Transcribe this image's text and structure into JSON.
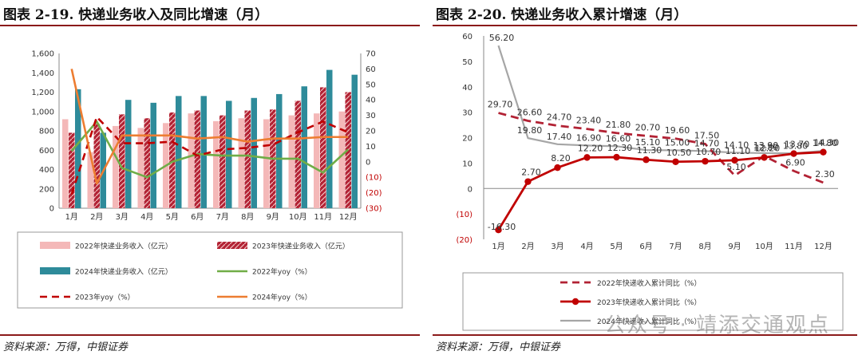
{
  "left": {
    "title": "图表 2-19. 快递业务收入及同比增速（月）",
    "source": "资料来源：万得，中银证券",
    "chart_data": {
      "type": "bar",
      "categories": [
        "1月",
        "2月",
        "3月",
        "4月",
        "5月",
        "6月",
        "7月",
        "8月",
        "9月",
        "10月",
        "11月",
        "12月"
      ],
      "y_left_ticks": [
        "0",
        "200",
        "400",
        "600",
        "800",
        "1,000",
        "1,200",
        "1,400",
        "1,600"
      ],
      "y_right_ticks": [
        "(30)",
        "(20)",
        "(10)",
        "0",
        "10",
        "20",
        "30",
        "40",
        "50",
        "60",
        "70"
      ],
      "ylim_left": [
        0,
        1600
      ],
      "ylim_right": [
        -30,
        70
      ],
      "bars": [
        {
          "name": "2022年快递业务收入（亿元）",
          "color": "#f4b8b8",
          "values": [
            920,
            580,
            850,
            830,
            880,
            980,
            900,
            930,
            920,
            960,
            980,
            1000
          ]
        },
        {
          "name": "2023年快递业务收入（亿元）",
          "color": "#b22234",
          "values": [
            780,
            870,
            970,
            930,
            990,
            1010,
            960,
            1010,
            1020,
            1110,
            1250,
            1200
          ]
        },
        {
          "name": "2024年快递业务收入（亿元）",
          "color": "#2e8b9a",
          "values": [
            1230,
            780,
            1120,
            1090,
            1160,
            1160,
            1110,
            1140,
            1180,
            1260,
            1430,
            1380
          ]
        }
      ],
      "lines": [
        {
          "name": "2022年yoy（%）",
          "color": "#70ad47",
          "dash": false,
          "values": [
            7,
            26,
            -4,
            -10,
            0,
            5,
            4,
            4,
            2,
            2,
            -7,
            8
          ]
        },
        {
          "name": "2023年yoy（%）",
          "color": "#c00000",
          "dash": true,
          "values": [
            -21,
            29,
            12,
            12,
            13,
            4,
            8,
            9,
            11,
            19,
            26,
            19
          ]
        },
        {
          "name": "2024年yoy（%）",
          "color": "#ed7d31",
          "dash": false,
          "values": [
            60,
            -14,
            17,
            17,
            17,
            15,
            16,
            13,
            15,
            15,
            16,
            16
          ]
        }
      ],
      "legend": [
        {
          "label": "2022年快递业务收入（亿元）",
          "kind": "bar",
          "color": "#f4b8b8"
        },
        {
          "label": "2023年快递业务收入（亿元）",
          "kind": "bar-hatch",
          "color": "#b22234"
        },
        {
          "label": "2024年快递业务收入（亿元）",
          "kind": "bar",
          "color": "#2e8b9a"
        },
        {
          "label": "2022年yoy（%）",
          "kind": "line",
          "color": "#70ad47"
        },
        {
          "label": "2023年yoy（%）",
          "kind": "dash",
          "color": "#c00000"
        },
        {
          "label": "2024年yoy（%）",
          "kind": "line",
          "color": "#ed7d31"
        }
      ]
    }
  },
  "right": {
    "title": "图表 2-20. 快递业务收入累计增速（月）",
    "source": "资料来源：万得，中银证券",
    "watermark": "公众号 · 靖添交通观点",
    "chart_data": {
      "type": "line",
      "categories": [
        "1月",
        "2月",
        "3月",
        "4月",
        "5月",
        "6月",
        "7月",
        "8月",
        "9月",
        "10月",
        "11月",
        "12月"
      ],
      "y_ticks": [
        "(20)",
        "(10)",
        "0",
        "10",
        "20",
        "30",
        "40",
        "50",
        "60"
      ],
      "ylim": [
        -20,
        60
      ],
      "series": [
        {
          "name": "2022年快递收入累计同比（%）",
          "color": "#b22234",
          "style": "dash",
          "values": [
            29.7,
            26.6,
            24.7,
            23.4,
            21.8,
            20.7,
            19.6,
            17.5,
            5.1,
            12.8,
            6.9,
            2.3
          ],
          "labels": [
            "29.70",
            "26.60",
            "24.70",
            "23.40",
            "21.80",
            "20.70",
            "19.60",
            "17.50",
            "5.10",
            "12.80",
            "6.90",
            "2.30"
          ]
        },
        {
          "name": "2023年快递收入累计同比（%）",
          "color": "#c00000",
          "style": "solid-marker",
          "values": [
            -16.3,
            2.7,
            8.2,
            12.2,
            12.3,
            11.3,
            10.5,
            10.7,
            11.1,
            12.2,
            13.7,
            14.3
          ],
          "labels": [
            "-16.30",
            "2.70",
            "8.20",
            "12.20",
            "12.30",
            "11.30",
            "10.50",
            "10.70",
            "11.10",
            "12.20",
            "13.70",
            "14.30"
          ]
        },
        {
          "name": "2024年快递收入累计同比（%）",
          "color": "#a6a6a6",
          "style": "solid",
          "values": [
            56.2,
            19.8,
            17.4,
            16.9,
            16.6,
            15.1,
            15.0,
            14.7,
            14.1,
            13.9,
            13.8,
            14.8
          ],
          "labels": [
            "56.20",
            "19.80",
            "17.40",
            "16.90",
            "16.60",
            "15.10",
            "15.00",
            "14.70",
            "14.10",
            "13.90",
            "13.80",
            "14.80"
          ]
        }
      ]
    }
  }
}
